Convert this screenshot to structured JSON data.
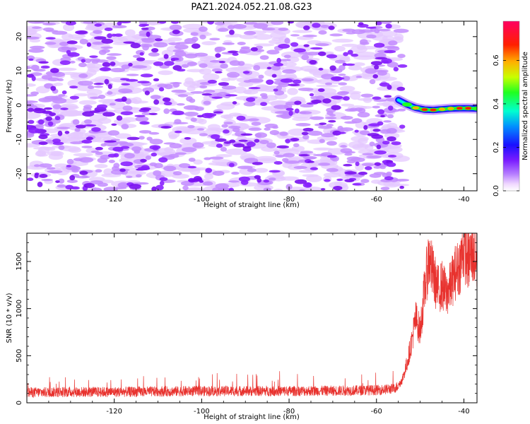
{
  "figure": {
    "title": "PAZ1.2024.052.21.08.G23"
  },
  "chart_data": [
    {
      "type": "heatmap",
      "title": "PAZ1.2024.052.21.08.G23",
      "xlabel": "Height of straight line (km)",
      "ylabel": "Frequency (Hz)",
      "xlim": [
        -140,
        -37
      ],
      "ylim": [
        -25,
        24.5
      ],
      "x_ticks": [
        -120,
        -100,
        -80,
        -60,
        -40
      ],
      "y_ticks": [
        -20,
        -10,
        0,
        10,
        20
      ],
      "colorbar": {
        "label": "Normalized spectral amplitude",
        "range": [
          0,
          0.78
        ],
        "ticks": [
          0.0,
          0.2,
          0.4,
          0.6
        ],
        "colormap": "gist_rainbow_r (white at zero)"
      },
      "features": {
        "noise_region": {
          "x_range": [
            -140,
            -54
          ],
          "y_range": [
            -25,
            24.5
          ],
          "amplitude_range": [
            0.0,
            0.12
          ]
        },
        "signal_ridge": {
          "x": [
            -55,
            -53,
            -51,
            -49,
            -47,
            -45,
            -43,
            -41,
            -39,
            -37
          ],
          "frequency": [
            1.5,
            0.2,
            -0.8,
            -1.3,
            -1.4,
            -1.2,
            -1.0,
            -0.9,
            -0.9,
            -1.0
          ],
          "peak_amplitude": [
            0.15,
            0.4,
            0.55,
            0.65,
            0.7,
            0.55,
            0.6,
            0.65,
            0.7,
            0.45
          ]
        }
      },
      "grid": false,
      "legend": "none"
    },
    {
      "type": "line",
      "xlabel": "Height of straight line (km)",
      "ylabel": "SNR (10 * v/v)",
      "xlim": [
        -140,
        -37
      ],
      "ylim": [
        0,
        1800
      ],
      "x_ticks": [
        -120,
        -100,
        -80,
        -60,
        -40
      ],
      "y_ticks": [
        0,
        500,
        1000,
        1500
      ],
      "line_color": "#e8322e",
      "series": [
        {
          "x": [
            -140,
            -130,
            -120,
            -110,
            -100,
            -90,
            -80,
            -70,
            -60,
            -56,
            -55,
            -54,
            -53,
            -52,
            -51,
            -50,
            -49,
            -48,
            -47,
            -46,
            -45,
            -44,
            -43,
            -42,
            -41,
            -40,
            -39,
            -38,
            -37
          ],
          "y": [
            110,
            115,
            115,
            120,
            125,
            125,
            125,
            128,
            135,
            150,
            180,
            260,
            420,
            640,
            900,
            760,
            1200,
            1550,
            1350,
            1200,
            1250,
            1150,
            1250,
            1380,
            1450,
            1650,
            1500,
            1600,
            1480
          ]
        }
      ],
      "grid": false,
      "legend": "none"
    }
  ]
}
